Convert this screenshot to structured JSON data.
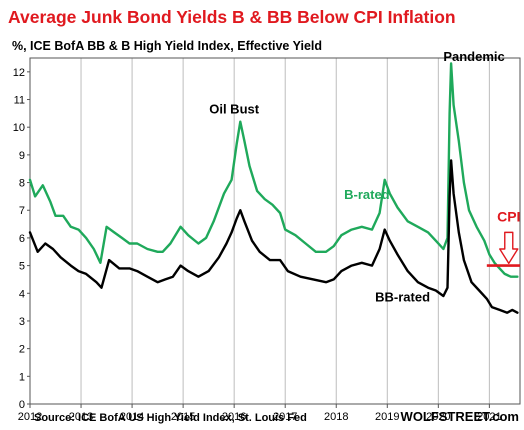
{
  "chart_data": {
    "type": "line",
    "title": "Average Junk Bond Yields B & BB Below CPI Inflation",
    "subtitle": "%, ICE BofA BB & B High Yield Index, Effective Yield",
    "source": "Source: ICE BofA US High Yield Index, St. Louis Fed",
    "brand": "WOLFSTREET.com",
    "xlabel": "",
    "ylabel": "",
    "xlim": [
      2012,
      2021.6
    ],
    "ylim": [
      0,
      12.5
    ],
    "x_ticks": [
      "2012",
      "2013",
      "2014",
      "2015",
      "2016",
      "2017",
      "2018",
      "2019",
      "2020",
      "2021"
    ],
    "y_ticks": [
      "0",
      "1",
      "2",
      "3",
      "4",
      "5",
      "6",
      "7",
      "8",
      "9",
      "10",
      "11",
      "12"
    ],
    "grid": "vertical",
    "annotations": [
      {
        "text": "Oil Bust",
        "x": 2016.0,
        "y": 10.5
      },
      {
        "text": "Pandemic",
        "x": 2020.7,
        "y": 12.4
      },
      {
        "text": "B-rated",
        "x": 2018.6,
        "y": 7.4
      },
      {
        "text": "BB-rated",
        "x": 2019.3,
        "y": 3.7
      },
      {
        "text": "CPI",
        "x": 2021.38,
        "y": 6.6
      }
    ],
    "cpi_line": {
      "value": 5.0,
      "x_start": 2020.95,
      "x_end": 2021.6
    },
    "series": [
      {
        "name": "B-rated",
        "color": "#1fa95b",
        "points": [
          [
            2012.0,
            8.1
          ],
          [
            2012.1,
            7.5
          ],
          [
            2012.25,
            7.9
          ],
          [
            2012.4,
            7.3
          ],
          [
            2012.5,
            6.8
          ],
          [
            2012.65,
            6.8
          ],
          [
            2012.8,
            6.4
          ],
          [
            2012.95,
            6.3
          ],
          [
            2013.1,
            6.0
          ],
          [
            2013.25,
            5.6
          ],
          [
            2013.38,
            5.1
          ],
          [
            2013.5,
            6.4
          ],
          [
            2013.65,
            6.2
          ],
          [
            2013.8,
            6.0
          ],
          [
            2013.95,
            5.8
          ],
          [
            2014.1,
            5.8
          ],
          [
            2014.3,
            5.6
          ],
          [
            2014.5,
            5.5
          ],
          [
            2014.6,
            5.5
          ],
          [
            2014.75,
            5.8
          ],
          [
            2014.95,
            6.4
          ],
          [
            2015.1,
            6.1
          ],
          [
            2015.3,
            5.8
          ],
          [
            2015.45,
            6.0
          ],
          [
            2015.6,
            6.6
          ],
          [
            2015.8,
            7.6
          ],
          [
            2015.95,
            8.1
          ],
          [
            2016.05,
            9.4
          ],
          [
            2016.12,
            10.2
          ],
          [
            2016.2,
            9.5
          ],
          [
            2016.3,
            8.6
          ],
          [
            2016.45,
            7.7
          ],
          [
            2016.6,
            7.4
          ],
          [
            2016.75,
            7.2
          ],
          [
            2016.9,
            6.9
          ],
          [
            2017.0,
            6.3
          ],
          [
            2017.2,
            6.1
          ],
          [
            2017.4,
            5.8
          ],
          [
            2017.6,
            5.5
          ],
          [
            2017.8,
            5.5
          ],
          [
            2017.95,
            5.7
          ],
          [
            2018.1,
            6.1
          ],
          [
            2018.3,
            6.3
          ],
          [
            2018.5,
            6.4
          ],
          [
            2018.7,
            6.3
          ],
          [
            2018.85,
            6.9
          ],
          [
            2018.95,
            8.1
          ],
          [
            2019.05,
            7.6
          ],
          [
            2019.2,
            7.1
          ],
          [
            2019.4,
            6.6
          ],
          [
            2019.6,
            6.4
          ],
          [
            2019.8,
            6.2
          ],
          [
            2019.95,
            5.9
          ],
          [
            2020.1,
            5.6
          ],
          [
            2020.18,
            6.0
          ],
          [
            2020.22,
            10.5
          ],
          [
            2020.25,
            12.3
          ],
          [
            2020.3,
            10.8
          ],
          [
            2020.4,
            9.5
          ],
          [
            2020.5,
            8.0
          ],
          [
            2020.6,
            7.0
          ],
          [
            2020.75,
            6.4
          ],
          [
            2020.9,
            5.9
          ],
          [
            2021.0,
            5.4
          ],
          [
            2021.1,
            5.1
          ],
          [
            2021.2,
            4.9
          ],
          [
            2021.3,
            4.7
          ],
          [
            2021.42,
            4.6
          ],
          [
            2021.55,
            4.6
          ]
        ]
      },
      {
        "name": "BB-rated",
        "color": "#000000",
        "points": [
          [
            2012.0,
            6.2
          ],
          [
            2012.15,
            5.5
          ],
          [
            2012.3,
            5.8
          ],
          [
            2012.45,
            5.6
          ],
          [
            2012.6,
            5.3
          ],
          [
            2012.8,
            5.0
          ],
          [
            2012.95,
            4.8
          ],
          [
            2013.1,
            4.7
          ],
          [
            2013.3,
            4.4
          ],
          [
            2013.4,
            4.2
          ],
          [
            2013.55,
            5.2
          ],
          [
            2013.75,
            4.9
          ],
          [
            2013.95,
            4.9
          ],
          [
            2014.1,
            4.8
          ],
          [
            2014.3,
            4.6
          ],
          [
            2014.5,
            4.4
          ],
          [
            2014.65,
            4.5
          ],
          [
            2014.8,
            4.6
          ],
          [
            2014.95,
            5.0
          ],
          [
            2015.1,
            4.8
          ],
          [
            2015.3,
            4.6
          ],
          [
            2015.5,
            4.8
          ],
          [
            2015.7,
            5.3
          ],
          [
            2015.85,
            5.8
          ],
          [
            2015.95,
            6.2
          ],
          [
            2016.05,
            6.7
          ],
          [
            2016.12,
            7.0
          ],
          [
            2016.2,
            6.6
          ],
          [
            2016.35,
            5.9
          ],
          [
            2016.5,
            5.5
          ],
          [
            2016.7,
            5.2
          ],
          [
            2016.9,
            5.2
          ],
          [
            2017.05,
            4.8
          ],
          [
            2017.3,
            4.6
          ],
          [
            2017.55,
            4.5
          ],
          [
            2017.8,
            4.4
          ],
          [
            2017.95,
            4.5
          ],
          [
            2018.1,
            4.8
          ],
          [
            2018.3,
            5.0
          ],
          [
            2018.5,
            5.1
          ],
          [
            2018.7,
            5.0
          ],
          [
            2018.85,
            5.6
          ],
          [
            2018.95,
            6.3
          ],
          [
            2019.05,
            5.9
          ],
          [
            2019.2,
            5.4
          ],
          [
            2019.4,
            4.8
          ],
          [
            2019.6,
            4.4
          ],
          [
            2019.8,
            4.2
          ],
          [
            2019.95,
            4.1
          ],
          [
            2020.1,
            3.9
          ],
          [
            2020.18,
            4.2
          ],
          [
            2020.22,
            7.5
          ],
          [
            2020.25,
            8.8
          ],
          [
            2020.3,
            7.6
          ],
          [
            2020.4,
            6.2
          ],
          [
            2020.5,
            5.2
          ],
          [
            2020.65,
            4.4
          ],
          [
            2020.8,
            4.1
          ],
          [
            2020.95,
            3.8
          ],
          [
            2021.05,
            3.5
          ],
          [
            2021.2,
            3.4
          ],
          [
            2021.35,
            3.3
          ],
          [
            2021.45,
            3.4
          ],
          [
            2021.55,
            3.3
          ]
        ]
      }
    ]
  }
}
